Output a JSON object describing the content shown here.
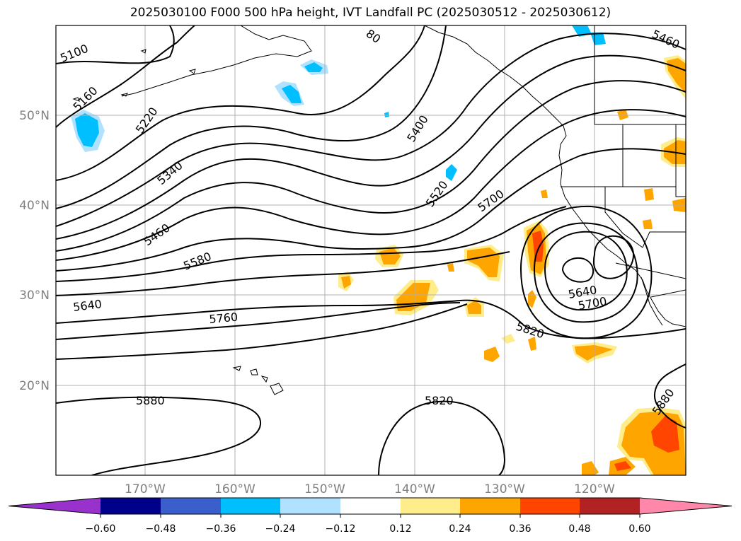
{
  "title": "2025030100 F000 500 hPa height, IVT Landfall PC (2025030512 - 2025030612)",
  "map": {
    "lon_ticks": [
      "170°W",
      "160°W",
      "150°W",
      "140°W",
      "130°W",
      "120°W"
    ],
    "lat_ticks": [
      "50°N",
      "40°N",
      "30°N",
      "20°N"
    ],
    "gridlines": true
  },
  "contours": {
    "variable": "500 hPa height",
    "labels": [
      "5100",
      "5160",
      "5220",
      "5340",
      "5460",
      "5580",
      "5640",
      "5760",
      "5880",
      "5400",
      "5520",
      "5700",
      "5640",
      "5700",
      "5820",
      "5820",
      "5460",
      "5880",
      "80"
    ]
  },
  "colorbar": {
    "ticks": [
      "−0.60",
      "−0.48",
      "−0.36",
      "−0.24",
      "−0.12",
      "0.12",
      "0.24",
      "0.36",
      "0.48",
      "0.60"
    ],
    "colors": [
      "#9932cc",
      "#7b2fcf",
      "#00008b",
      "#3a5fcd",
      "#00bfff",
      "#b0e2ff",
      "#ffffff",
      "#ffec8b",
      "#ffa500",
      "#ff4500",
      "#b22222",
      "#ff88aa"
    ]
  }
}
